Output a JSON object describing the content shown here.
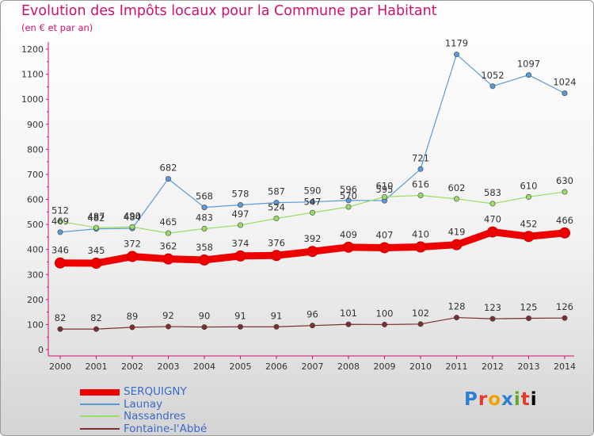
{
  "chart_data": {
    "type": "line",
    "title": "Evolution des Impôts locaux pour la Commune par Habitant",
    "subtitle": "(en € et par an)",
    "x": [
      "2000",
      "2001",
      "2002",
      "2003",
      "2004",
      "2005",
      "2006",
      "2007",
      "2008",
      "2009",
      "2010",
      "2011",
      "2012",
      "2013",
      "2014"
    ],
    "ylim": [
      0,
      1200
    ],
    "yticks": [
      0,
      100,
      200,
      300,
      400,
      500,
      600,
      700,
      800,
      900,
      1000,
      1100,
      1200
    ],
    "grid": false,
    "legend_position": "bottom-left",
    "series": [
      {
        "name": "SERQUIGNY",
        "color": "#ee0000",
        "values": [
          346,
          345,
          372,
          362,
          358,
          374,
          376,
          392,
          409,
          407,
          410,
          419,
          470,
          452,
          466
        ]
      },
      {
        "name": "Launay",
        "color": "#5b9bd5",
        "values": [
          469,
          482,
          484,
          682,
          568,
          578,
          587,
          590,
          596,
          595,
          721,
          1179,
          1052,
          1097,
          1024
        ]
      },
      {
        "name": "Nassandres",
        "color": "#99dd66",
        "values": [
          512,
          487,
          490,
          465,
          483,
          497,
          524,
          547,
          570,
          610,
          616,
          602,
          583,
          610,
          630
        ]
      },
      {
        "name": "Fontaine-l'Abbé",
        "color": "#7a2f2f",
        "values": [
          82,
          82,
          89,
          92,
          90,
          91,
          91,
          96,
          101,
          100,
          102,
          128,
          123,
          125,
          126
        ]
      }
    ]
  },
  "logo": {
    "letters": [
      "P",
      "r",
      "o",
      "x",
      "i",
      "t",
      "i"
    ]
  }
}
